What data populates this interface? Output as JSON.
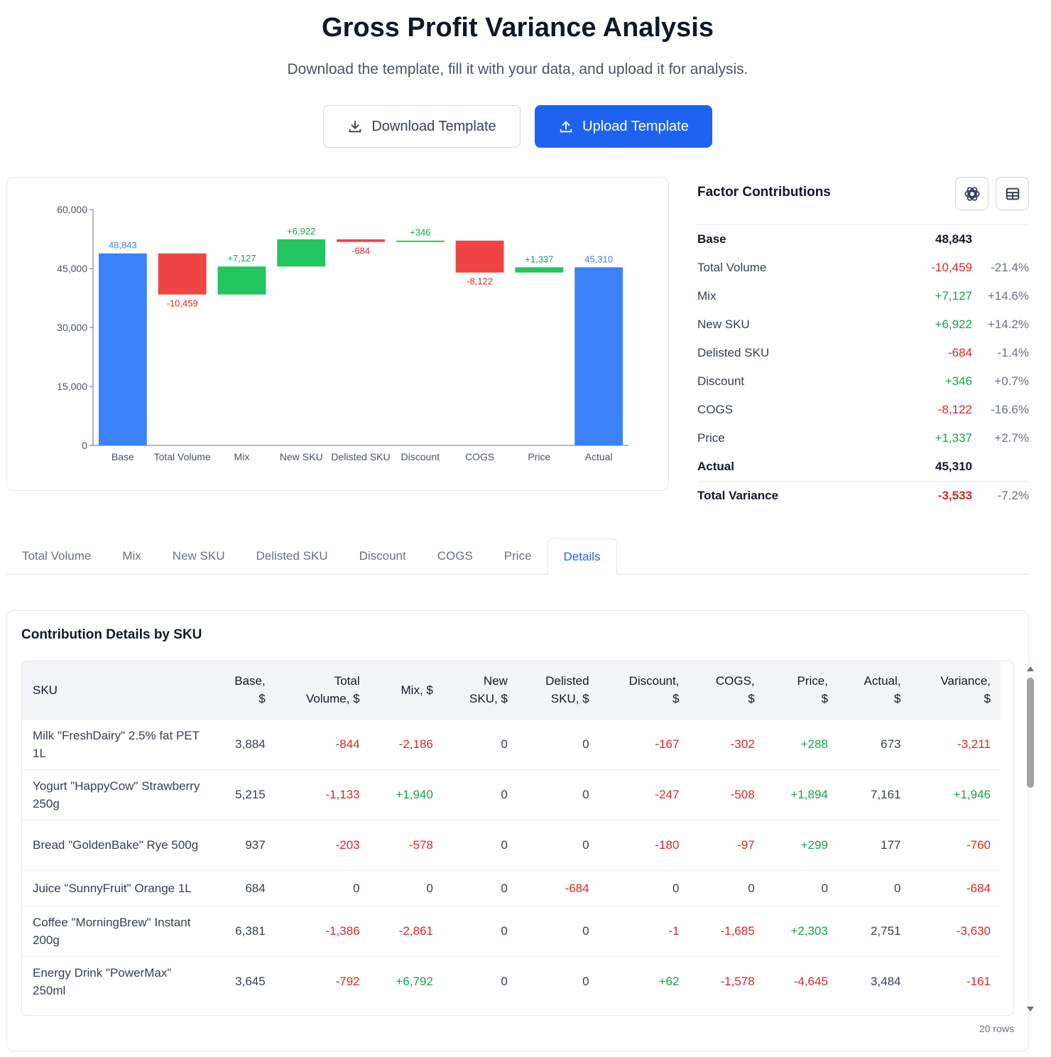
{
  "header": {
    "title": "Gross Profit Variance Analysis",
    "subtitle": "Download the template, fill it with your data, and upload it for analysis.",
    "download_label": "Download Template",
    "upload_label": "Upload Template"
  },
  "colors": {
    "increase": "#22c55e",
    "decrease": "#ef4444",
    "total": "#3b82f6",
    "accent": "#1d63f0"
  },
  "chart_data": {
    "type": "waterfall",
    "categories": [
      "Base",
      "Total Volume",
      "Mix",
      "New SKU",
      "Delisted SKU",
      "Discount",
      "COGS",
      "Price",
      "Actual"
    ],
    "values": [
      48843,
      -10459,
      7127,
      6922,
      -684,
      346,
      -8122,
      1337,
      45310
    ],
    "labels": [
      "48,843",
      "-10,459",
      "+7,127",
      "+6,922",
      "-684",
      "+346",
      "-8,122",
      "+1,337",
      "45,310"
    ],
    "kinds": [
      "total",
      "delta",
      "delta",
      "delta",
      "delta",
      "delta",
      "delta",
      "delta",
      "total"
    ],
    "ylim": [
      0,
      60000
    ],
    "yticks": [
      0,
      15000,
      30000,
      45000,
      60000
    ],
    "ytick_labels": [
      "0",
      "15,000",
      "30,000",
      "45,000",
      "60,000"
    ],
    "grid": false
  },
  "factors": {
    "title": "Factor Contributions",
    "icons": [
      "openai-icon",
      "table-icon"
    ],
    "rows": [
      {
        "label": "Base",
        "value": "48,843",
        "pct": "",
        "cls": "",
        "bold": true
      },
      {
        "label": "Total Volume",
        "value": "-10,459",
        "pct": "-21.4%",
        "cls": "red"
      },
      {
        "label": "Mix",
        "value": "+7,127",
        "pct": "+14.6%",
        "cls": "green"
      },
      {
        "label": "New SKU",
        "value": "+6,922",
        "pct": "+14.2%",
        "cls": "green"
      },
      {
        "label": "Delisted SKU",
        "value": "-684",
        "pct": "-1.4%",
        "cls": "red"
      },
      {
        "label": "Discount",
        "value": "+346",
        "pct": "+0.7%",
        "cls": "green"
      },
      {
        "label": "COGS",
        "value": "-8,122",
        "pct": "-16.6%",
        "cls": "red"
      },
      {
        "label": "Price",
        "value": "+1,337",
        "pct": "+2.7%",
        "cls": "green"
      },
      {
        "label": "Actual",
        "value": "45,310",
        "pct": "",
        "cls": "",
        "bold": true
      },
      {
        "label": "Total Variance",
        "value": "-3,533",
        "pct": "-7.2%",
        "cls": "red",
        "bold": true
      }
    ]
  },
  "tabs": [
    "Total Volume",
    "Mix",
    "New SKU",
    "Delisted SKU",
    "Discount",
    "COGS",
    "Price",
    "Details"
  ],
  "active_tab": "Details",
  "details": {
    "title": "Contribution Details by SKU",
    "columns": [
      "SKU",
      "Base,<br>$",
      "Total<br>Volume, $",
      "Mix, $",
      "New<br>SKU, $",
      "Delisted<br>SKU, $",
      "Discount,<br>$",
      "COGS,<br>$",
      "Price,<br>$",
      "Actual,<br>$",
      "Variance,<br>$"
    ],
    "rows": [
      [
        "Milk \"FreshDairy\" 2.5% fat PET 1L",
        "3,884",
        "-844",
        "-2,186",
        "0",
        "0",
        "-167",
        "-302",
        "+288",
        "673",
        "-3,211"
      ],
      [
        "Yogurt \"HappyCow\" Strawberry 250g",
        "5,215",
        "-1,133",
        "+1,940",
        "0",
        "0",
        "-247",
        "-508",
        "+1,894",
        "7,161",
        "+1,946"
      ],
      [
        "Bread \"GoldenBake\" Rye 500g",
        "937",
        "-203",
        "-578",
        "0",
        "0",
        "-180",
        "-97",
        "+299",
        "177",
        "-760"
      ],
      [
        "Juice \"SunnyFruit\" Orange 1L",
        "684",
        "0",
        "0",
        "0",
        "-684",
        "0",
        "0",
        "0",
        "0",
        "-684"
      ],
      [
        "Coffee \"MorningBrew\" Instant 200g",
        "6,381",
        "-1,386",
        "-2,861",
        "0",
        "0",
        "-1",
        "-1,685",
        "+2,303",
        "2,751",
        "-3,630"
      ],
      [
        "Energy Drink \"PowerMax\" 250ml",
        "3,645",
        "-792",
        "+6,792",
        "0",
        "0",
        "+62",
        "-1,578",
        "-4,645",
        "3,484",
        "-161"
      ]
    ],
    "row_count": "20 rows"
  }
}
